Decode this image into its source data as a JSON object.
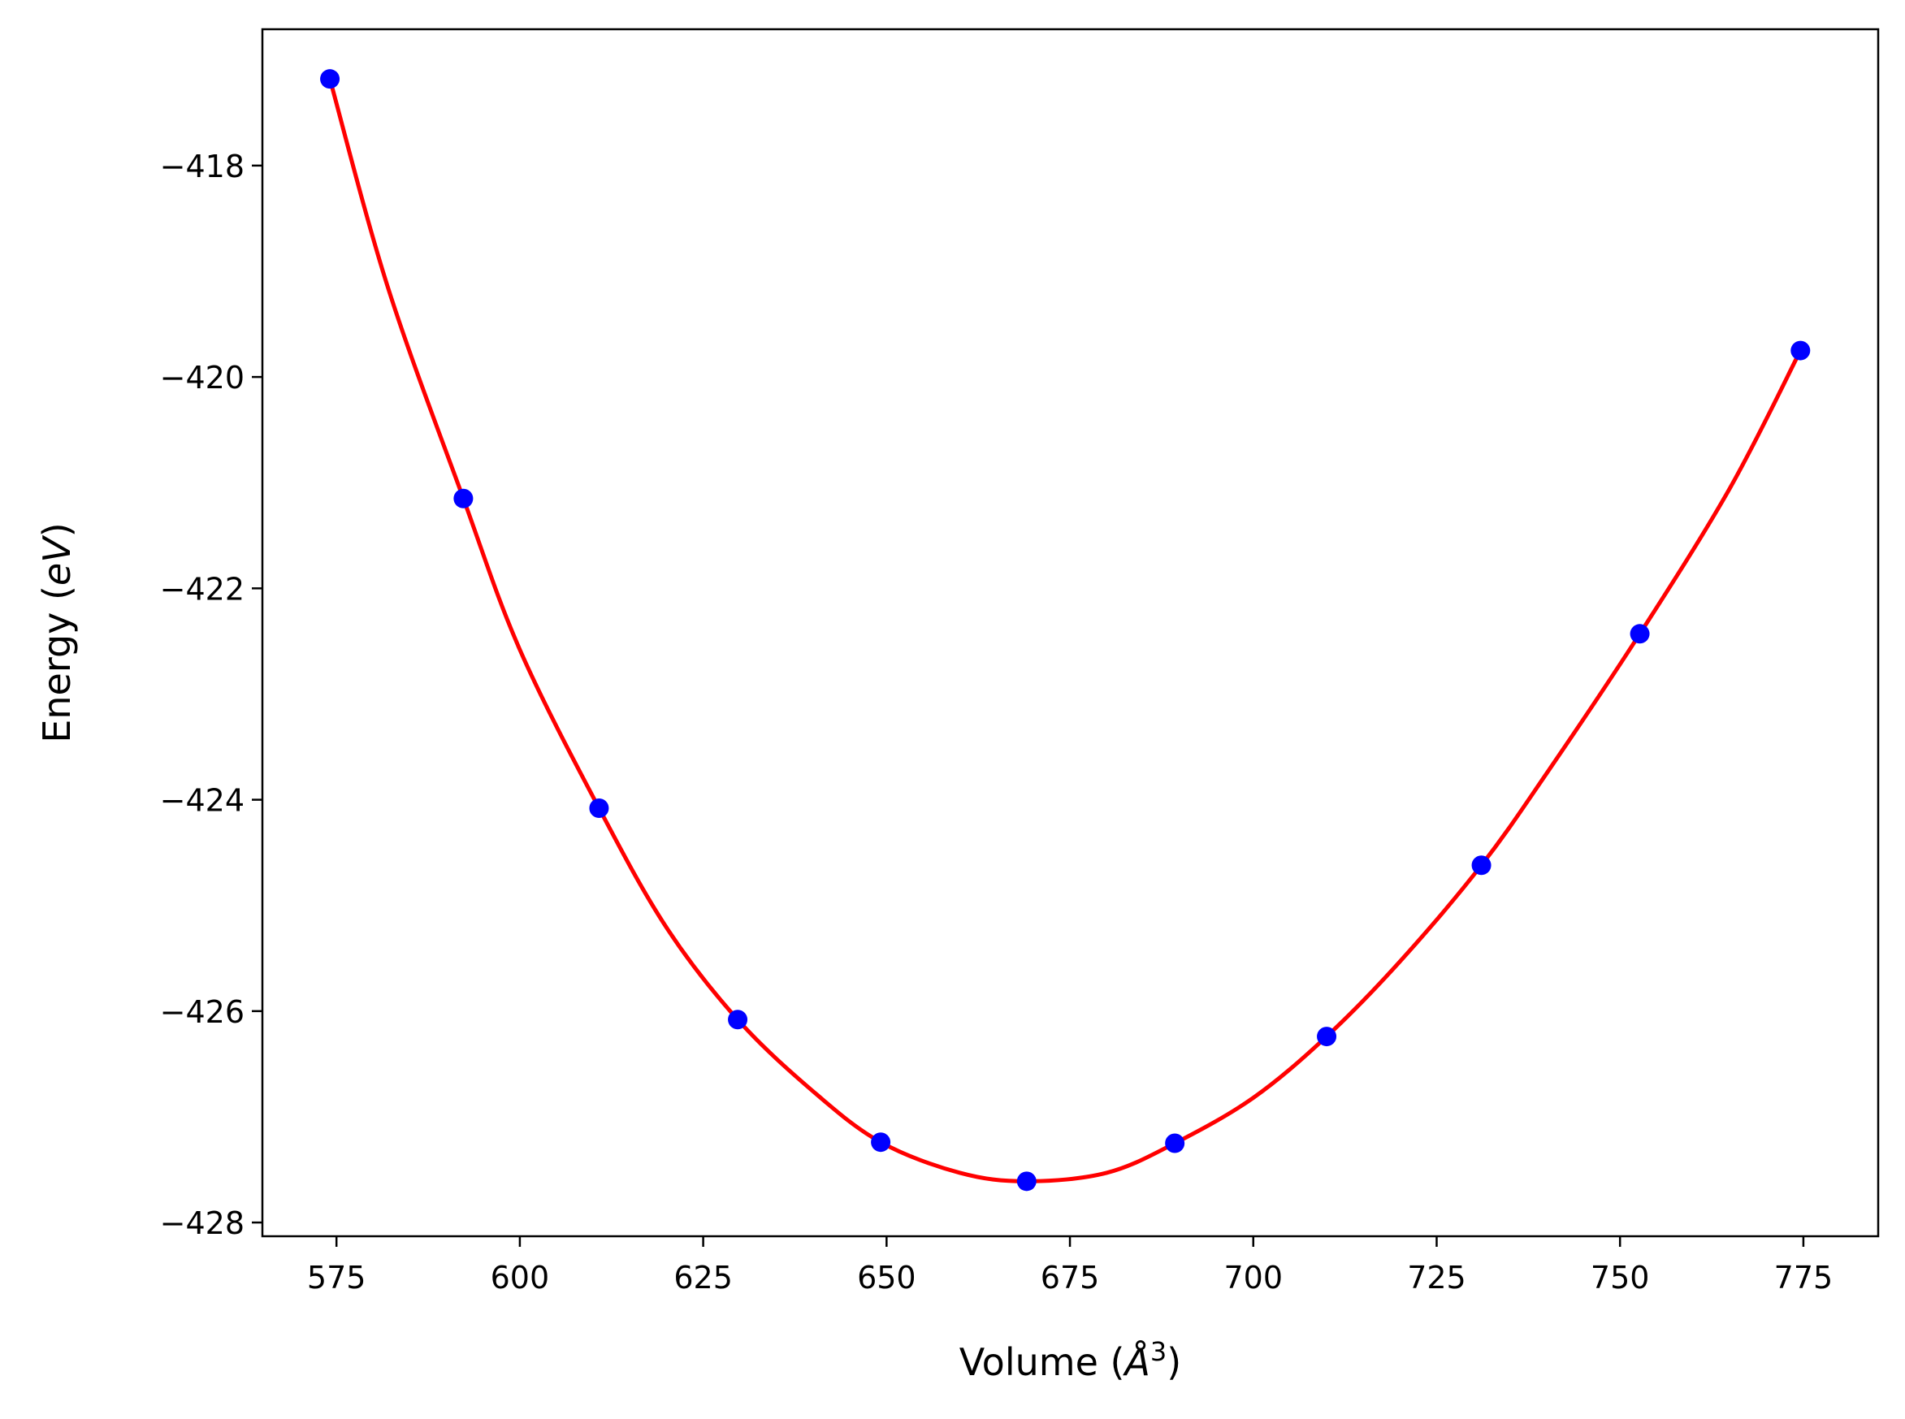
{
  "chart_data": {
    "type": "scatter",
    "title": "",
    "xlabel": "Volume ($\\AA^3$)",
    "ylabel": "Energy ($eV$)",
    "xlabel_parts": {
      "prefix": "Volume (",
      "symbol": "Å",
      "superscript": "3",
      "suffix": ")"
    },
    "ylabel_parts": {
      "prefix": "Energy (",
      "italic": "eV",
      "suffix": ")"
    },
    "xlim": [
      564.9,
      785.2
    ],
    "ylim": [
      -428.13,
      -416.71
    ],
    "xticks": [
      575,
      600,
      625,
      650,
      675,
      700,
      725,
      750,
      775
    ],
    "yticks": [
      -418,
      -420,
      -422,
      -424,
      -426,
      -428
    ],
    "xtick_labels": [
      "575",
      "600",
      "625",
      "650",
      "675",
      "700",
      "725",
      "750",
      "775"
    ],
    "ytick_labels": [
      "−418",
      "−420",
      "−422",
      "−424",
      "−426",
      "−428"
    ],
    "grid": false,
    "series": [
      {
        "kind": "points",
        "color": "#0000ff",
        "x": [
          574.1,
          592.3,
          610.8,
          629.7,
          649.2,
          669.1,
          689.3,
          710.0,
          731.1,
          752.7,
          774.6
        ],
        "y": [
          -417.18,
          -421.15,
          -424.08,
          -426.08,
          -427.24,
          -427.61,
          -427.25,
          -426.24,
          -424.62,
          -422.43,
          -419.75
        ]
      },
      {
        "kind": "fit",
        "color": "#ff0000",
        "x": [
          574.1,
          582.0,
          592.3,
          600.0,
          610.8,
          620.0,
          629.7,
          640.0,
          649.2,
          660.0,
          669.1,
          680.0,
          689.3,
          700.0,
          710.0,
          720.0,
          731.1,
          740.0,
          752.7,
          765.0,
          774.6
        ],
        "y": [
          -417.18,
          -419.15,
          -421.15,
          -422.58,
          -424.08,
          -425.21,
          -426.08,
          -426.76,
          -427.24,
          -427.53,
          -427.61,
          -427.53,
          -427.25,
          -426.82,
          -426.24,
          -425.53,
          -424.62,
          -423.75,
          -422.43,
          -421.05,
          -419.75
        ]
      }
    ]
  }
}
